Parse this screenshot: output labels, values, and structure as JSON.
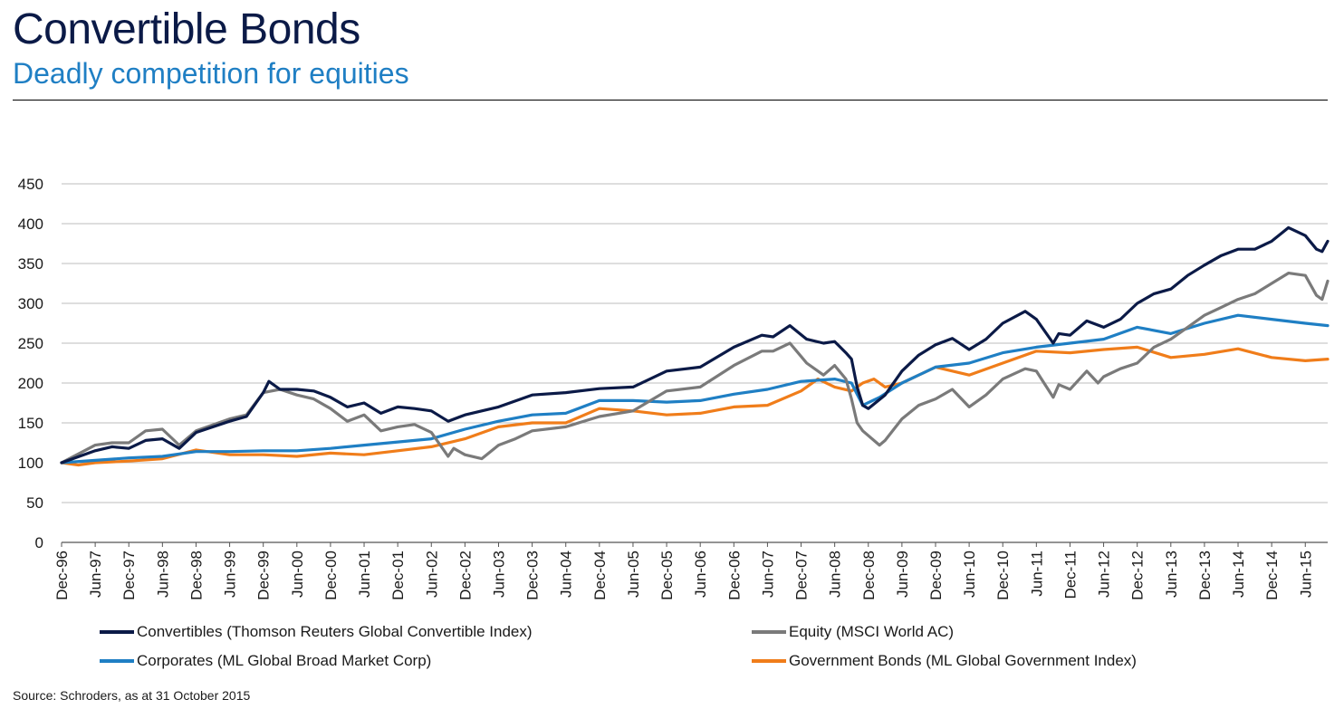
{
  "header": {
    "title": "Convertible Bonds",
    "subtitle": "Deadly competition for equities"
  },
  "footer": {
    "source": "Source: Schroders, as at 31 October 2015"
  },
  "colors": {
    "convertibles": "#0b1a47",
    "equity": "#7a7a7a",
    "corporates": "#1f7fc4",
    "government": "#f07d1a"
  },
  "chart_data": {
    "type": "line",
    "title": "",
    "xlabel": "",
    "ylabel": "",
    "ylim": [
      0,
      450
    ],
    "yticks": [
      0,
      50,
      100,
      150,
      200,
      250,
      300,
      350,
      400,
      450
    ],
    "grid": "horizontal",
    "legend_position": "bottom",
    "x_start": "Dec-96",
    "x_end": "Oct-15",
    "x_ticks": [
      "Dec-96",
      "Jun-97",
      "Dec-97",
      "Jun-98",
      "Dec-98",
      "Jun-99",
      "Dec-99",
      "Jun-00",
      "Dec-00",
      "Jun-01",
      "Dec-01",
      "Jun-02",
      "Dec-02",
      "Jun-03",
      "Dec-03",
      "Jun-04",
      "Dec-04",
      "Jun-05",
      "Dec-05",
      "Jun-06",
      "Dec-06",
      "Jun-07",
      "Dec-07",
      "Jun-08",
      "Dec-08",
      "Jun-09",
      "Dec-09",
      "Jun-10",
      "Dec-10",
      "Jun-11",
      "Dec-11",
      "Jun-12",
      "Dec-12",
      "Jun-13",
      "Dec-13",
      "Jun-14",
      "Dec-14",
      "Jun-15"
    ],
    "series": [
      {
        "name": "Convertibles (Thomson Reuters Global Convertible Index)",
        "color": "#0b1a47",
        "points": [
          [
            "Dec-96",
            100
          ],
          [
            "Jun-97",
            115
          ],
          [
            "Sep-97",
            120
          ],
          [
            "Dec-97",
            118
          ],
          [
            "Mar-98",
            128
          ],
          [
            "Jun-98",
            130
          ],
          [
            "Sep-98",
            118
          ],
          [
            "Dec-98",
            138
          ],
          [
            "Jun-99",
            152
          ],
          [
            "Sep-99",
            158
          ],
          [
            "Dec-99",
            188
          ],
          [
            "Jan-00",
            202
          ],
          [
            "Mar-00",
            192
          ],
          [
            "Jun-00",
            192
          ],
          [
            "Sep-00",
            190
          ],
          [
            "Dec-00",
            182
          ],
          [
            "Mar-01",
            170
          ],
          [
            "Jun-01",
            175
          ],
          [
            "Sep-01",
            162
          ],
          [
            "Dec-01",
            170
          ],
          [
            "Mar-02",
            168
          ],
          [
            "Jun-02",
            165
          ],
          [
            "Sep-02",
            152
          ],
          [
            "Dec-02",
            160
          ],
          [
            "Jun-03",
            170
          ],
          [
            "Dec-03",
            185
          ],
          [
            "Jun-04",
            188
          ],
          [
            "Dec-04",
            193
          ],
          [
            "Jun-05",
            195
          ],
          [
            "Dec-05",
            215
          ],
          [
            "Jun-06",
            220
          ],
          [
            "Dec-06",
            245
          ],
          [
            "May-07",
            260
          ],
          [
            "Jul-07",
            258
          ],
          [
            "Oct-07",
            272
          ],
          [
            "Jan-08",
            255
          ],
          [
            "Apr-08",
            250
          ],
          [
            "Jun-08",
            252
          ],
          [
            "Aug-08",
            238
          ],
          [
            "Sep-08",
            230
          ],
          [
            "Oct-08",
            195
          ],
          [
            "Nov-08",
            172
          ],
          [
            "Dec-08",
            168
          ],
          [
            "Mar-09",
            185
          ],
          [
            "Jun-09",
            215
          ],
          [
            "Sep-09",
            235
          ],
          [
            "Dec-09",
            248
          ],
          [
            "Mar-10",
            256
          ],
          [
            "Jun-10",
            242
          ],
          [
            "Sep-10",
            255
          ],
          [
            "Dec-10",
            275
          ],
          [
            "Apr-11",
            290
          ],
          [
            "Jun-11",
            280
          ],
          [
            "Sep-11",
            250
          ],
          [
            "Oct-11",
            262
          ],
          [
            "Dec-11",
            260
          ],
          [
            "Mar-12",
            278
          ],
          [
            "Jun-12",
            270
          ],
          [
            "Sep-12",
            280
          ],
          [
            "Dec-12",
            300
          ],
          [
            "Mar-13",
            312
          ],
          [
            "Jun-13",
            318
          ],
          [
            "Sep-13",
            335
          ],
          [
            "Dec-13",
            348
          ],
          [
            "Mar-14",
            360
          ],
          [
            "Jun-14",
            368
          ],
          [
            "Sep-14",
            368
          ],
          [
            "Dec-14",
            378
          ],
          [
            "Mar-15",
            395
          ],
          [
            "Jun-15",
            385
          ],
          [
            "Aug-15",
            368
          ],
          [
            "Sep-15",
            365
          ],
          [
            "Oct-15",
            378
          ]
        ]
      },
      {
        "name": "Equity (MSCI World AC)",
        "color": "#7a7a7a",
        "points": [
          [
            "Dec-96",
            100
          ],
          [
            "Jun-97",
            122
          ],
          [
            "Sep-97",
            125
          ],
          [
            "Dec-97",
            125
          ],
          [
            "Mar-98",
            140
          ],
          [
            "Jun-98",
            142
          ],
          [
            "Sep-98",
            122
          ],
          [
            "Dec-98",
            140
          ],
          [
            "Jun-99",
            155
          ],
          [
            "Sep-99",
            160
          ],
          [
            "Dec-99",
            188
          ],
          [
            "Mar-00",
            192
          ],
          [
            "Jun-00",
            185
          ],
          [
            "Sep-00",
            180
          ],
          [
            "Dec-00",
            168
          ],
          [
            "Mar-01",
            152
          ],
          [
            "Jun-01",
            160
          ],
          [
            "Sep-01",
            140
          ],
          [
            "Dec-01",
            145
          ],
          [
            "Mar-02",
            148
          ],
          [
            "Jun-02",
            138
          ],
          [
            "Sep-02",
            108
          ],
          [
            "Oct-02",
            118
          ],
          [
            "Dec-02",
            110
          ],
          [
            "Mar-03",
            105
          ],
          [
            "Jun-03",
            122
          ],
          [
            "Sep-03",
            130
          ],
          [
            "Dec-03",
            140
          ],
          [
            "Jun-04",
            145
          ],
          [
            "Dec-04",
            158
          ],
          [
            "Jun-05",
            165
          ],
          [
            "Dec-05",
            190
          ],
          [
            "Jun-06",
            195
          ],
          [
            "Dec-06",
            222
          ],
          [
            "May-07",
            240
          ],
          [
            "Jul-07",
            240
          ],
          [
            "Oct-07",
            250
          ],
          [
            "Jan-08",
            225
          ],
          [
            "Apr-08",
            210
          ],
          [
            "Jun-08",
            222
          ],
          [
            "Aug-08",
            205
          ],
          [
            "Sep-08",
            180
          ],
          [
            "Oct-08",
            150
          ],
          [
            "Nov-08",
            140
          ],
          [
            "Feb-09",
            122
          ],
          [
            "Mar-09",
            128
          ],
          [
            "Jun-09",
            155
          ],
          [
            "Sep-09",
            172
          ],
          [
            "Dec-09",
            180
          ],
          [
            "Mar-10",
            192
          ],
          [
            "Jun-10",
            170
          ],
          [
            "Sep-10",
            185
          ],
          [
            "Dec-10",
            205
          ],
          [
            "Apr-11",
            218
          ],
          [
            "Jun-11",
            215
          ],
          [
            "Sep-11",
            182
          ],
          [
            "Oct-11",
            198
          ],
          [
            "Dec-11",
            192
          ],
          [
            "Mar-12",
            215
          ],
          [
            "May-12",
            200
          ],
          [
            "Jun-12",
            208
          ],
          [
            "Sep-12",
            218
          ],
          [
            "Dec-12",
            225
          ],
          [
            "Mar-13",
            245
          ],
          [
            "Jun-13",
            255
          ],
          [
            "Sep-13",
            270
          ],
          [
            "Dec-13",
            285
          ],
          [
            "Mar-14",
            295
          ],
          [
            "Jun-14",
            305
          ],
          [
            "Sep-14",
            312
          ],
          [
            "Dec-14",
            325
          ],
          [
            "Mar-15",
            338
          ],
          [
            "Jun-15",
            335
          ],
          [
            "Aug-15",
            310
          ],
          [
            "Sep-15",
            305
          ],
          [
            "Oct-15",
            328
          ]
        ]
      },
      {
        "name": "Corporates (ML Global Broad Market Corp)",
        "color": "#1f7fc4",
        "points": [
          [
            "Dec-96",
            100
          ],
          [
            "Jun-97",
            103
          ],
          [
            "Dec-97",
            106
          ],
          [
            "Jun-98",
            108
          ],
          [
            "Dec-98",
            114
          ],
          [
            "Jun-99",
            114
          ],
          [
            "Dec-99",
            115
          ],
          [
            "Jun-00",
            115
          ],
          [
            "Dec-00",
            118
          ],
          [
            "Jun-01",
            122
          ],
          [
            "Dec-01",
            126
          ],
          [
            "Jun-02",
            130
          ],
          [
            "Dec-02",
            142
          ],
          [
            "Jun-03",
            152
          ],
          [
            "Dec-03",
            160
          ],
          [
            "Jun-04",
            162
          ],
          [
            "Dec-04",
            178
          ],
          [
            "Jun-05",
            178
          ],
          [
            "Dec-05",
            176
          ],
          [
            "Jun-06",
            178
          ],
          [
            "Dec-06",
            186
          ],
          [
            "Jun-07",
            192
          ],
          [
            "Dec-07",
            202
          ],
          [
            "Jun-08",
            205
          ],
          [
            "Sep-08",
            200
          ],
          [
            "Nov-08",
            172
          ],
          [
            "Feb-09",
            182
          ],
          [
            "Jun-09",
            200
          ],
          [
            "Dec-09",
            220
          ],
          [
            "Jun-10",
            225
          ],
          [
            "Dec-10",
            238
          ],
          [
            "Jun-11",
            245
          ],
          [
            "Dec-11",
            250
          ],
          [
            "Jun-12",
            255
          ],
          [
            "Dec-12",
            270
          ],
          [
            "Jun-13",
            262
          ],
          [
            "Dec-13",
            275
          ],
          [
            "Jun-14",
            285
          ],
          [
            "Dec-14",
            280
          ],
          [
            "Jun-15",
            275
          ],
          [
            "Oct-15",
            272
          ]
        ]
      },
      {
        "name": "Government Bonds (ML Global Government Index)",
        "color": "#f07d1a",
        "points": [
          [
            "Dec-96",
            100
          ],
          [
            "Mar-97",
            97
          ],
          [
            "Jun-97",
            100
          ],
          [
            "Dec-97",
            102
          ],
          [
            "Jun-98",
            105
          ],
          [
            "Dec-98",
            116
          ],
          [
            "Jun-99",
            110
          ],
          [
            "Dec-99",
            110
          ],
          [
            "Jun-00",
            108
          ],
          [
            "Dec-00",
            112
          ],
          [
            "Jun-01",
            110
          ],
          [
            "Dec-01",
            115
          ],
          [
            "Jun-02",
            120
          ],
          [
            "Dec-02",
            130
          ],
          [
            "Jun-03",
            145
          ],
          [
            "Dec-03",
            150
          ],
          [
            "Jun-04",
            150
          ],
          [
            "Dec-04",
            168
          ],
          [
            "Jun-05",
            165
          ],
          [
            "Dec-05",
            160
          ],
          [
            "Jun-06",
            162
          ],
          [
            "Dec-06",
            170
          ],
          [
            "Jun-07",
            172
          ],
          [
            "Dec-07",
            190
          ],
          [
            "Mar-08",
            205
          ],
          [
            "Jun-08",
            195
          ],
          [
            "Sep-08",
            190
          ],
          [
            "Nov-08",
            200
          ],
          [
            "Jan-09",
            205
          ],
          [
            "Mar-09",
            195
          ],
          [
            "Jun-09",
            200
          ],
          [
            "Dec-09",
            220
          ],
          [
            "Jun-10",
            210
          ],
          [
            "Dec-10",
            225
          ],
          [
            "Jun-11",
            240
          ],
          [
            "Dec-11",
            238
          ],
          [
            "Jun-12",
            242
          ],
          [
            "Dec-12",
            245
          ],
          [
            "Jun-13",
            232
          ],
          [
            "Dec-13",
            236
          ],
          [
            "Jun-14",
            243
          ],
          [
            "Dec-14",
            232
          ],
          [
            "Jun-15",
            228
          ],
          [
            "Oct-15",
            230
          ]
        ]
      }
    ]
  }
}
